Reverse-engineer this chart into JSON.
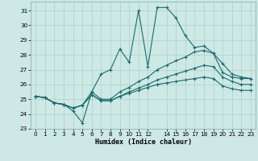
{
  "title": "",
  "xlabel": "Humidex (Indice chaleur)",
  "xlim": [
    -0.5,
    23.5
  ],
  "ylim": [
    23,
    31.6
  ],
  "yticks": [
    23,
    24,
    25,
    26,
    27,
    28,
    29,
    30,
    31
  ],
  "xticks": [
    0,
    1,
    2,
    3,
    4,
    5,
    6,
    7,
    8,
    9,
    10,
    11,
    12,
    14,
    15,
    16,
    17,
    18,
    19,
    20,
    21,
    22,
    23
  ],
  "xtick_labels": [
    "0",
    "1",
    "2",
    "3",
    "4",
    "5",
    "6",
    "7",
    "8",
    "9",
    "10",
    "11",
    "12",
    "14",
    "15",
    "16",
    "17",
    "18",
    "19",
    "20",
    "21",
    "22",
    "23"
  ],
  "background_color": "#cde8e5",
  "grid_color": "#b0d4d0",
  "line_color": "#1a6b6b",
  "series": [
    [
      25.2,
      25.1,
      24.75,
      24.65,
      24.2,
      23.4,
      25.5,
      26.7,
      27.0,
      28.4,
      27.5,
      31.0,
      27.2,
      31.2,
      31.2,
      30.5,
      29.3,
      28.5,
      28.6,
      28.1,
      26.8,
      26.5,
      26.4,
      26.4
    ],
    [
      25.2,
      25.1,
      24.75,
      24.65,
      24.4,
      24.6,
      25.5,
      25.0,
      25.0,
      25.5,
      25.8,
      26.2,
      26.5,
      27.0,
      27.3,
      27.6,
      27.85,
      28.2,
      28.3,
      28.1,
      27.4,
      26.7,
      26.5,
      26.4
    ],
    [
      25.2,
      25.1,
      24.75,
      24.65,
      24.4,
      24.6,
      25.3,
      24.9,
      24.9,
      25.2,
      25.5,
      25.75,
      26.0,
      26.3,
      26.5,
      26.7,
      26.9,
      27.1,
      27.3,
      27.2,
      26.5,
      26.2,
      26.0,
      26.0
    ],
    [
      25.2,
      25.1,
      24.75,
      24.65,
      24.4,
      24.6,
      25.3,
      24.9,
      24.9,
      25.2,
      25.4,
      25.6,
      25.8,
      26.0,
      26.1,
      26.2,
      26.3,
      26.4,
      26.5,
      26.4,
      25.9,
      25.7,
      25.6,
      25.6
    ]
  ]
}
